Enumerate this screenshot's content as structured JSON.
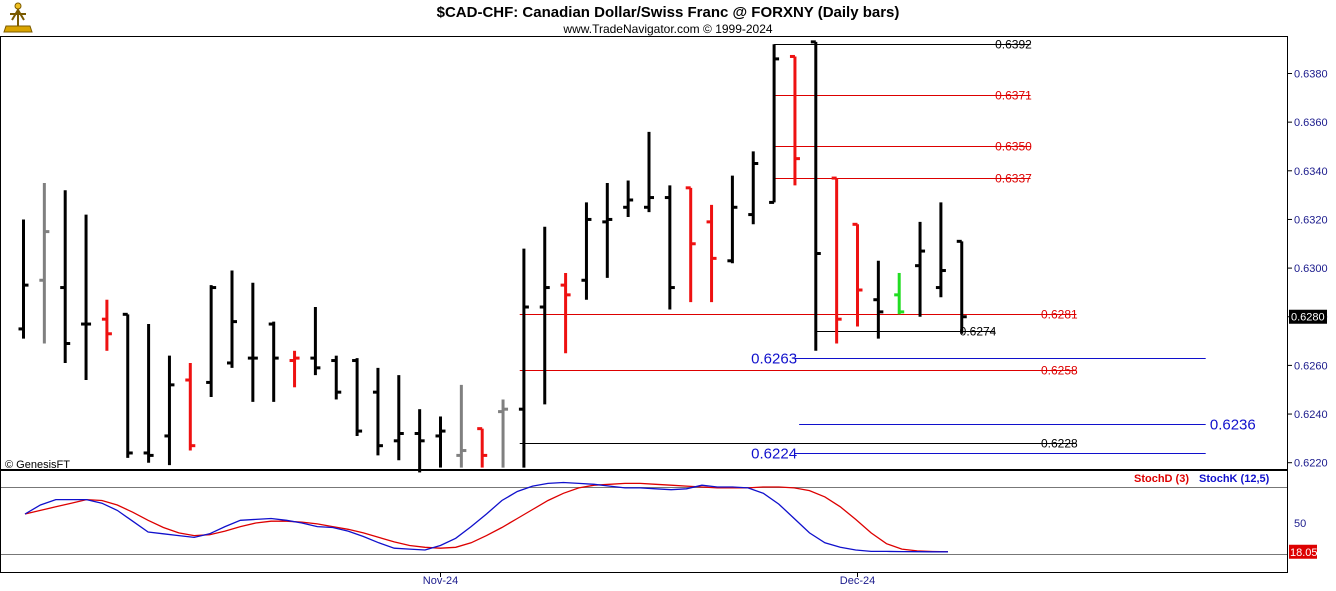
{
  "header": {
    "title": "$CAD-CHF:  Canadian Dollar/Swiss Franc @ FORXNY  (Daily bars)",
    "subtitle": "www.TradeNavigator.com © 1999-2024",
    "watermark": "© GenesisFT"
  },
  "colors": {
    "bar_default": "#000000",
    "bar_red": "#ee1111",
    "bar_gray": "#808080",
    "bar_green": "#22dd22",
    "fib_red": "#dd0000",
    "fib_black": "#000000",
    "fib_blue": "#1010cc",
    "stoch_d": "#dd0000",
    "stoch_k": "#1010cc",
    "axis_text": "#1a1a8c"
  },
  "chart_data": [
    {
      "type": "ohlc",
      "title": "$CAD-CHF:  Canadian Dollar/Swiss Franc @ FORXNY  (Daily bars)",
      "ylim": [
        0.6217,
        0.6395
      ],
      "y_ticks": [
        "0.6220",
        "0.6240",
        "0.6260",
        "0.6280",
        "0.6300",
        "0.6320",
        "0.6340",
        "0.6360",
        "0.6380"
      ],
      "last_price": "0.6280",
      "x_labels": [
        {
          "label": "Nov-24",
          "bar": 20
        },
        {
          "label": "Dec-24",
          "bar": 40
        }
      ],
      "bars": [
        {
          "o": 0.6275,
          "h": 0.632,
          "l": 0.6271,
          "c": 0.6293,
          "color": "black"
        },
        {
          "o": 0.6295,
          "h": 0.6335,
          "l": 0.6269,
          "c": 0.6315,
          "color": "gray"
        },
        {
          "o": 0.6292,
          "h": 0.6332,
          "l": 0.6261,
          "c": 0.6269,
          "color": "black"
        },
        {
          "o": 0.6277,
          "h": 0.6322,
          "l": 0.6254,
          "c": 0.6277,
          "color": "black"
        },
        {
          "o": 0.6279,
          "h": 0.6287,
          "l": 0.6266,
          "c": 0.6273,
          "color": "red"
        },
        {
          "o": 0.6281,
          "h": 0.6281,
          "l": 0.6222,
          "c": 0.6224,
          "color": "black"
        },
        {
          "o": 0.6224,
          "h": 0.6277,
          "l": 0.622,
          "c": 0.6223,
          "color": "black"
        },
        {
          "o": 0.6231,
          "h": 0.6264,
          "l": 0.6219,
          "c": 0.6252,
          "color": "black"
        },
        {
          "o": 0.6254,
          "h": 0.6261,
          "l": 0.6225,
          "c": 0.6227,
          "color": "red"
        },
        {
          "o": 0.6253,
          "h": 0.6293,
          "l": 0.6247,
          "c": 0.6292,
          "color": "black"
        },
        {
          "o": 0.6261,
          "h": 0.6299,
          "l": 0.6259,
          "c": 0.6278,
          "color": "black"
        },
        {
          "o": 0.6263,
          "h": 0.6294,
          "l": 0.6245,
          "c": 0.6263,
          "color": "black"
        },
        {
          "o": 0.6277,
          "h": 0.6278,
          "l": 0.6245,
          "c": 0.6263,
          "color": "black"
        },
        {
          "o": 0.6262,
          "h": 0.6266,
          "l": 0.6251,
          "c": 0.6263,
          "color": "red"
        },
        {
          "o": 0.6263,
          "h": 0.6284,
          "l": 0.6256,
          "c": 0.6259,
          "color": "black"
        },
        {
          "o": 0.6262,
          "h": 0.6264,
          "l": 0.6246,
          "c": 0.6249,
          "color": "black"
        },
        {
          "o": 0.6262,
          "h": 0.6263,
          "l": 0.6231,
          "c": 0.6233,
          "color": "black"
        },
        {
          "o": 0.6249,
          "h": 0.6259,
          "l": 0.6223,
          "c": 0.6227,
          "color": "black"
        },
        {
          "o": 0.6229,
          "h": 0.6256,
          "l": 0.6221,
          "c": 0.6232,
          "color": "black"
        },
        {
          "o": 0.6232,
          "h": 0.6242,
          "l": 0.6216,
          "c": 0.6229,
          "color": "black"
        },
        {
          "o": 0.6231,
          "h": 0.6239,
          "l": 0.6218,
          "c": 0.6233,
          "color": "black"
        },
        {
          "o": 0.6223,
          "h": 0.6252,
          "l": 0.6218,
          "c": 0.6225,
          "color": "gray"
        },
        {
          "o": 0.6234,
          "h": 0.6234,
          "l": 0.6218,
          "c": 0.6223,
          "color": "red"
        },
        {
          "o": 0.6241,
          "h": 0.6246,
          "l": 0.6218,
          "c": 0.6242,
          "color": "gray"
        },
        {
          "o": 0.6242,
          "h": 0.6308,
          "l": 0.6218,
          "c": 0.6284,
          "color": "black"
        },
        {
          "o": 0.6284,
          "h": 0.6317,
          "l": 0.6244,
          "c": 0.6292,
          "color": "black"
        },
        {
          "o": 0.6293,
          "h": 0.6298,
          "l": 0.6265,
          "c": 0.6289,
          "color": "red"
        },
        {
          "o": 0.6295,
          "h": 0.6327,
          "l": 0.6287,
          "c": 0.632,
          "color": "black"
        },
        {
          "o": 0.6319,
          "h": 0.6335,
          "l": 0.6296,
          "c": 0.632,
          "color": "black"
        },
        {
          "o": 0.6325,
          "h": 0.6336,
          "l": 0.6321,
          "c": 0.6328,
          "color": "black"
        },
        {
          "o": 0.6325,
          "h": 0.6356,
          "l": 0.6323,
          "c": 0.6329,
          "color": "black"
        },
        {
          "o": 0.6329,
          "h": 0.6334,
          "l": 0.6283,
          "c": 0.6292,
          "color": "black"
        },
        {
          "o": 0.6333,
          "h": 0.6333,
          "l": 0.6286,
          "c": 0.631,
          "color": "red"
        },
        {
          "o": 0.6319,
          "h": 0.6326,
          "l": 0.6286,
          "c": 0.6304,
          "color": "red"
        },
        {
          "o": 0.6303,
          "h": 0.6338,
          "l": 0.6302,
          "c": 0.6325,
          "color": "black"
        },
        {
          "o": 0.6322,
          "h": 0.6348,
          "l": 0.6318,
          "c": 0.6343,
          "color": "black"
        },
        {
          "o": 0.6327,
          "h": 0.6392,
          "l": 0.6327,
          "c": 0.6386,
          "color": "black"
        },
        {
          "o": 0.6387,
          "h": 0.6387,
          "l": 0.6334,
          "c": 0.6345,
          "color": "red"
        },
        {
          "o": 0.6393,
          "h": 0.6393,
          "l": 0.6266,
          "c": 0.6306,
          "color": "black"
        },
        {
          "o": 0.6337,
          "h": 0.6337,
          "l": 0.6269,
          "c": 0.6279,
          "color": "red"
        },
        {
          "o": 0.6318,
          "h": 0.6318,
          "l": 0.6276,
          "c": 0.6291,
          "color": "red"
        },
        {
          "o": 0.6287,
          "h": 0.6303,
          "l": 0.6271,
          "c": 0.6282,
          "color": "black"
        },
        {
          "o": 0.6289,
          "h": 0.6298,
          "l": 0.6281,
          "c": 0.6282,
          "color": "green"
        },
        {
          "o": 0.6301,
          "h": 0.6319,
          "l": 0.628,
          "c": 0.6307,
          "color": "black"
        },
        {
          "o": 0.6292,
          "h": 0.6327,
          "l": 0.6288,
          "c": 0.6299,
          "color": "black"
        },
        {
          "o": 0.6311,
          "h": 0.6311,
          "l": 0.6273,
          "c": 0.628,
          "color": "black"
        }
      ],
      "levels": [
        {
          "value": 0.6392,
          "label": "0.6392",
          "color": "black",
          "from_bar": 36,
          "to_bar": 48.3,
          "label_bar": 46.6,
          "size": "normal"
        },
        {
          "value": 0.6371,
          "label": "0.6371",
          "color": "red",
          "from_bar": 36,
          "to_bar": 48.3,
          "label_bar": 46.6,
          "size": "normal"
        },
        {
          "value": 0.635,
          "label": "0.6350",
          "color": "red",
          "from_bar": 36,
          "to_bar": 48.3,
          "label_bar": 46.6,
          "size": "normal"
        },
        {
          "value": 0.6337,
          "label": "0.6337",
          "color": "red",
          "from_bar": 36,
          "to_bar": 48.3,
          "label_bar": 46.6,
          "size": "normal"
        },
        {
          "value": 0.6281,
          "label": "0.6281",
          "color": "red",
          "from_bar": 23.8,
          "to_bar": 50.5,
          "label_bar": 48.8,
          "size": "normal"
        },
        {
          "value": 0.6274,
          "label": "0.6274",
          "color": "black",
          "from_bar": 38,
          "to_bar": 46.6,
          "label_bar": 44.9,
          "size": "normal"
        },
        {
          "value": 0.6263,
          "label": "0.6263",
          "color": "blue",
          "from_bar": 37,
          "to_bar": 56.7,
          "label_bar": 34.9,
          "size": "large"
        },
        {
          "value": 0.6258,
          "label": "0.6258",
          "color": "red",
          "from_bar": 23.8,
          "to_bar": 50.5,
          "label_bar": 48.8,
          "size": "normal"
        },
        {
          "value": 0.6236,
          "label": "0.6236",
          "color": "blue",
          "from_bar": 37.2,
          "to_bar": 56.7,
          "label_bar": 56.9,
          "size": "large"
        },
        {
          "value": 0.6228,
          "label": "0.6228",
          "color": "black",
          "from_bar": 23.8,
          "to_bar": 50.5,
          "label_bar": 48.8,
          "size": "normal"
        },
        {
          "value": 0.6224,
          "label": "0.6224",
          "color": "blue",
          "from_bar": 37,
          "to_bar": 56.7,
          "label_bar": 34.9,
          "size": "large"
        }
      ]
    },
    {
      "type": "line",
      "ylim": [
        0,
        100
      ],
      "y_ticks": [
        "50"
      ],
      "ref_lines": [
        90,
        16
      ],
      "last_value": "18.05",
      "legend": [
        {
          "name": "StochD (3)",
          "color": "red"
        },
        {
          "name": "StochK (12,5)",
          "color": "blue"
        }
      ],
      "series": [
        {
          "name": "StochD (3)",
          "color": "red",
          "values": [
            60,
            64,
            68,
            72,
            76,
            75,
            70,
            62,
            53,
            45,
            39,
            36,
            37,
            41,
            46,
            50,
            52,
            52,
            51,
            49,
            46,
            43,
            39,
            34,
            29,
            25,
            23,
            22,
            23,
            28,
            36,
            45,
            55,
            65,
            75,
            83,
            89,
            92,
            93,
            94,
            94,
            93,
            92,
            91,
            90,
            89,
            89,
            89,
            90,
            90,
            89,
            86,
            79,
            68,
            54,
            39,
            27,
            21,
            19,
            18.3,
            18.05
          ]
        },
        {
          "name": "StochK (12,5)",
          "color": "blue",
          "values": [
            60,
            70,
            76,
            76,
            76,
            72,
            64,
            52,
            40,
            38,
            36,
            34,
            38,
            46,
            53,
            54,
            55,
            53,
            50,
            46,
            45,
            41,
            35,
            28,
            22,
            21,
            20,
            25,
            33,
            46,
            60,
            75,
            85,
            91,
            94,
            95,
            94,
            93,
            91,
            89,
            89,
            88,
            87,
            88,
            92,
            90,
            90,
            89,
            83,
            71,
            55,
            39,
            28,
            23,
            20,
            18.5,
            18.5,
            18.2,
            18.1,
            18.05,
            18.05
          ]
        }
      ]
    }
  ]
}
